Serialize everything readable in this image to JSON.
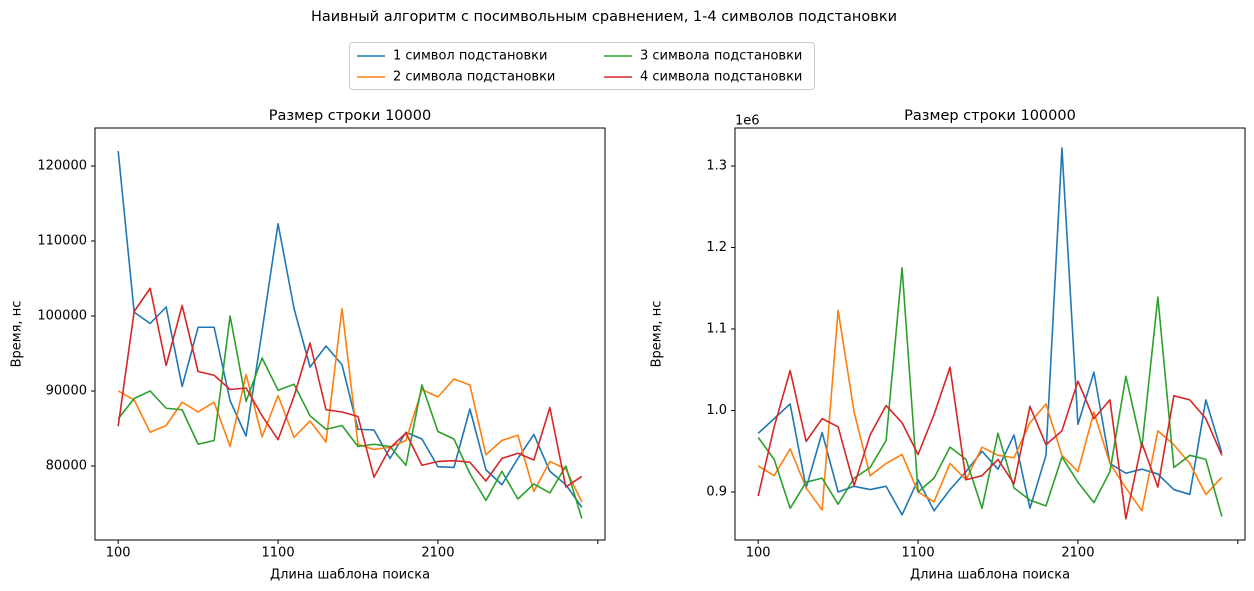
{
  "suptitle": "Наивный алгоритм с посимвольным сравнением, 1-4 символов подстановки",
  "legend": {
    "loc": "upper center",
    "ncol": 2
  },
  "chart_data": [
    {
      "type": "line",
      "title": "Размер строки 10000",
      "xlabel": "Длина шаблона поиска",
      "ylabel": "Время, нс",
      "x": [
        100,
        200,
        300,
        400,
        500,
        600,
        700,
        800,
        900,
        1000,
        1100,
        1200,
        1300,
        1400,
        1500,
        1600,
        1700,
        1800,
        1900,
        2000,
        2100,
        2200,
        2300,
        2400,
        2500,
        2600,
        2700,
        2800,
        2900,
        3000
      ],
      "xlim": [
        -45,
        3145
      ],
      "xticks": [
        100,
        1100,
        2100,
        {
          "value": 3100,
          "label": null
        }
      ],
      "ylim": [
        70130,
        125070
      ],
      "yticks": [
        80000,
        90000,
        100000,
        110000,
        120000
      ],
      "series": [
        {
          "name": "1 символ подстановки",
          "color": "#1f77b4",
          "values": [
            122000,
            100500,
            99000,
            101200,
            90600,
            98500,
            98500,
            88700,
            84000,
            98000,
            112300,
            101000,
            93200,
            96000,
            93500,
            84900,
            84800,
            81000,
            84500,
            83600,
            79900,
            79800,
            87600,
            79500,
            77500,
            81000,
            84200,
            79300,
            77500,
            74500
          ]
        },
        {
          "name": "2 символа подстановки",
          "color": "#ff7f0e",
          "values": [
            90000,
            88800,
            84500,
            85400,
            88500,
            87200,
            88500,
            82600,
            92200,
            83900,
            89400,
            83800,
            86000,
            83200,
            101000,
            82900,
            82200,
            82500,
            83400,
            90200,
            89200,
            91600,
            90800,
            81500,
            83400,
            84100,
            76600,
            80600,
            79600,
            75200
          ]
        },
        {
          "name": "3 символа подстановки",
          "color": "#2ca02c",
          "values": [
            86300,
            89000,
            90000,
            87700,
            87500,
            82900,
            83400,
            100000,
            88600,
            94400,
            90100,
            90900,
            86700,
            84900,
            85400,
            82600,
            82900,
            82600,
            80100,
            90800,
            84600,
            83600,
            79000,
            75400,
            79300,
            75600,
            77600,
            76400,
            80000,
            73000
          ]
        },
        {
          "name": "4 символа подстановки",
          "color": "#d62728",
          "values": [
            85300,
            100600,
            103700,
            93400,
            101400,
            92600,
            92100,
            90200,
            90400,
            86700,
            83500,
            89300,
            96400,
            87500,
            87200,
            86600,
            78500,
            82400,
            84400,
            80100,
            80600,
            80700,
            80500,
            78000,
            81000,
            81700,
            80800,
            87800,
            77200,
            78600
          ]
        }
      ]
    },
    {
      "type": "line",
      "title": "Размер строки 100000",
      "xlabel": "Длина шаблона поиска",
      "ylabel": "Время, нс",
      "offset_label": "1e6",
      "x": [
        100,
        200,
        300,
        400,
        500,
        600,
        700,
        800,
        900,
        1000,
        1100,
        1200,
        1300,
        1400,
        1500,
        1600,
        1700,
        1800,
        1900,
        2000,
        2100,
        2200,
        2300,
        2400,
        2500,
        2600,
        2700,
        2800,
        2900,
        3000
      ],
      "xlim": [
        -45,
        3145
      ],
      "xticks": [
        100,
        1100,
        2100,
        {
          "value": 3100,
          "label": null
        }
      ],
      "ylim": [
        841100,
        1346600
      ],
      "yticks": [
        {
          "value": 900000,
          "label": "0.9"
        },
        {
          "value": 1000000,
          "label": "1.0"
        },
        {
          "value": 1100000,
          "label": "1.1"
        },
        {
          "value": 1200000,
          "label": "1.2"
        },
        {
          "value": 1300000,
          "label": "1.3"
        }
      ],
      "series": [
        {
          "color": "#1f77b4",
          "values": [
            972000,
            990000,
            1008000,
            905000,
            973000,
            900000,
            907000,
            903000,
            907000,
            872000,
            915000,
            877000,
            903000,
            925000,
            950000,
            928000,
            970000,
            880000,
            945000,
            1322000,
            983000,
            1047000,
            935000,
            923000,
            928000,
            922000,
            903000,
            897000,
            1013000,
            948000
          ]
        },
        {
          "color": "#ff7f0e",
          "values": [
            932000,
            920000,
            953000,
            905000,
            878000,
            1123000,
            998000,
            920000,
            935000,
            946000,
            900000,
            888000,
            935000,
            915000,
            955000,
            945000,
            942000,
            985000,
            1008000,
            945000,
            925000,
            998000,
            935000,
            905000,
            877000,
            975000,
            958000,
            935000,
            897000,
            918000
          ]
        },
        {
          "color": "#2ca02c",
          "values": [
            967000,
            940000,
            880000,
            912000,
            917000,
            885000,
            917000,
            930000,
            963000,
            1175000,
            900000,
            917000,
            955000,
            940000,
            880000,
            972000,
            905000,
            890000,
            883000,
            943000,
            912000,
            887000,
            925000,
            1042000,
            955000,
            1139000,
            930000,
            945000,
            940000,
            870000
          ]
        },
        {
          "color": "#d62728",
          "values": [
            895000,
            980000,
            1049000,
            962000,
            990000,
            980000,
            908000,
            970000,
            1006000,
            985000,
            946000,
            995000,
            1053000,
            915000,
            920000,
            940000,
            910000,
            1005000,
            958000,
            975000,
            1036000,
            990000,
            1013000,
            867000,
            960000,
            906000,
            1018000,
            1013000,
            990000,
            945000
          ]
        }
      ]
    }
  ]
}
